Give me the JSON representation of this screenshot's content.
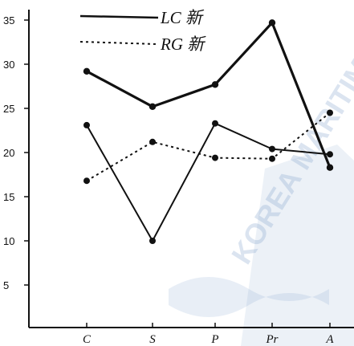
{
  "watermark": {
    "text": "KOREA MARITIME",
    "color": "#7f9fcc"
  },
  "chart_data": {
    "type": "line",
    "title": "",
    "xlabel": "",
    "ylabel": "",
    "categories": [
      "C",
      "S",
      "P",
      "Pr",
      "A"
    ],
    "ylim": [
      0,
      36
    ],
    "yticks": [
      5,
      10,
      15,
      20,
      25,
      30,
      35
    ],
    "ytick_labels": [
      "5",
      "10",
      "15",
      "20",
      "25",
      "30",
      "35"
    ],
    "grid": false,
    "legend_position": "top-center",
    "series": [
      {
        "name": "LC 新",
        "style": "solid-thick",
        "color": "#111111",
        "values": [
          29.2,
          25.2,
          27.7,
          34.7,
          18.3
        ]
      },
      {
        "name": "LC 新",
        "style": "solid-thin",
        "color": "#111111",
        "values": [
          23.1,
          10.0,
          23.3,
          20.4,
          19.8
        ]
      },
      {
        "name": "RG 新",
        "style": "dotted",
        "color": "#111111",
        "values": [
          16.8,
          21.2,
          19.4,
          19.3,
          24.5
        ]
      }
    ],
    "legend": [
      {
        "label": "LC 新",
        "style": "solid"
      },
      {
        "label": "RG 新",
        "style": "dotted"
      }
    ]
  }
}
